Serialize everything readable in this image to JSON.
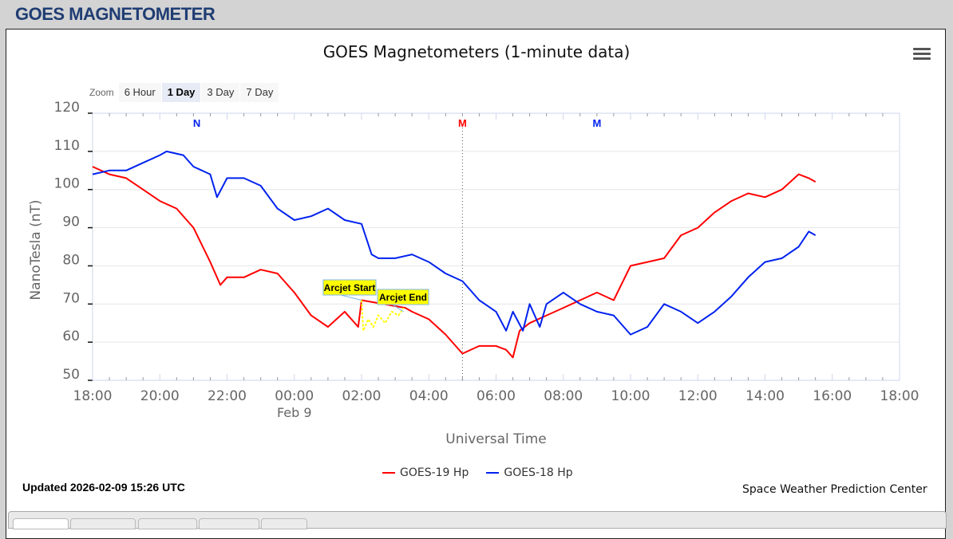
{
  "header": {
    "title": "GOES MAGNETOMETER"
  },
  "chart_header": {
    "title": "GOES Magnetometers (1-minute data)",
    "menu_icon": "hamburger-menu-icon"
  },
  "zoom": {
    "label": "Zoom",
    "buttons": [
      {
        "label": "6 Hour",
        "active": false
      },
      {
        "label": "1 Day",
        "active": true
      },
      {
        "label": "3 Day",
        "active": false
      },
      {
        "label": "7 Day",
        "active": false
      }
    ]
  },
  "footer": {
    "updated": "Updated 2026-02-09 15:26 UTC",
    "credit": "Space Weather Prediction Center"
  },
  "legend": [
    {
      "label": "GOES-19 Hp",
      "color": "#ff0000"
    },
    {
      "label": "GOES-18 Hp",
      "color": "#0022ee"
    }
  ],
  "tabs_count": 5,
  "chart_data": {
    "type": "line",
    "title": "GOES Magnetometers (1-minute data)",
    "xlabel": "Universal Time",
    "ylabel": "NanoTesla (nT)",
    "ylim": [
      50,
      120
    ],
    "yticks": [
      50,
      60,
      70,
      80,
      90,
      100,
      110,
      120
    ],
    "xticks": [
      "18:00",
      "20:00",
      "22:00",
      "00:00",
      "02:00",
      "04:00",
      "06:00",
      "08:00",
      "10:00",
      "12:00",
      "14:00",
      "16:00",
      "18:00"
    ],
    "xtick_sublabel": {
      "tick": "00:00",
      "text": "Feb 9"
    },
    "grid": true,
    "legend_position": "bottom",
    "markers": [
      {
        "label": "N",
        "hour": 21.1,
        "color": "#0022ee"
      },
      {
        "label": "M",
        "hour": 29.0,
        "color": "#ff0000",
        "dotted_line": true
      },
      {
        "label": "M",
        "hour": 33.0,
        "color": "#0022ee"
      }
    ],
    "annotations": [
      {
        "label": "Arcjet Start",
        "hour": 26.0,
        "value": 71
      },
      {
        "label": "Arcjet End",
        "hour": 27.25,
        "value": 68
      }
    ],
    "x_hours_note": "hours since 2026-02-08 00:00 UTC",
    "series": [
      {
        "name": "GOES-19 Hp",
        "color": "#ff0000",
        "x": [
          18.0,
          18.5,
          19.0,
          19.5,
          20.0,
          20.5,
          21.0,
          21.5,
          21.8,
          22.0,
          22.5,
          23.0,
          23.5,
          24.0,
          24.5,
          25.0,
          25.5,
          25.9,
          26.0,
          27.3,
          27.5,
          28.0,
          28.5,
          29.0,
          29.5,
          30.0,
          30.3,
          30.5,
          30.7,
          31.0,
          31.5,
          32.0,
          32.5,
          33.0,
          33.5,
          34.0,
          34.5,
          35.0,
          35.5,
          36.0,
          36.5,
          37.0,
          37.5,
          38.0,
          38.5,
          39.0,
          39.3,
          39.5
        ],
        "values": [
          106,
          104,
          103,
          100,
          97,
          95,
          90,
          81,
          75,
          77,
          77,
          79,
          78,
          73,
          67,
          64,
          68,
          64,
          71,
          69,
          68,
          66,
          62,
          57,
          59,
          59,
          58,
          56,
          63,
          65,
          67,
          69,
          71,
          73,
          71,
          80,
          81,
          82,
          88,
          90,
          94,
          97,
          99,
          98,
          100,
          104,
          103,
          102
        ]
      },
      {
        "name": "GOES-18 Hp",
        "color": "#0022ee",
        "x": [
          18.0,
          18.5,
          19.0,
          19.5,
          20.0,
          20.2,
          20.7,
          21.0,
          21.5,
          21.7,
          22.0,
          22.5,
          23.0,
          23.5,
          24.0,
          24.5,
          25.0,
          25.5,
          26.0,
          26.3,
          26.5,
          27.0,
          27.5,
          28.0,
          28.5,
          29.0,
          29.5,
          30.0,
          30.3,
          30.5,
          30.8,
          31.0,
          31.3,
          31.5,
          32.0,
          32.5,
          33.0,
          33.5,
          34.0,
          34.5,
          35.0,
          35.5,
          36.0,
          36.5,
          37.0,
          37.5,
          38.0,
          38.5,
          39.0,
          39.3,
          39.5
        ],
        "values": [
          104,
          105,
          105,
          107,
          109,
          110,
          109,
          106,
          104,
          98,
          103,
          103,
          101,
          95,
          92,
          93,
          95,
          92,
          91,
          83,
          82,
          82,
          83,
          81,
          78,
          76,
          71,
          68,
          63,
          68,
          63,
          70,
          64,
          70,
          73,
          70,
          68,
          67,
          62,
          64,
          70,
          68,
          65,
          68,
          72,
          77,
          81,
          82,
          85,
          89,
          88
        ]
      }
    ]
  }
}
